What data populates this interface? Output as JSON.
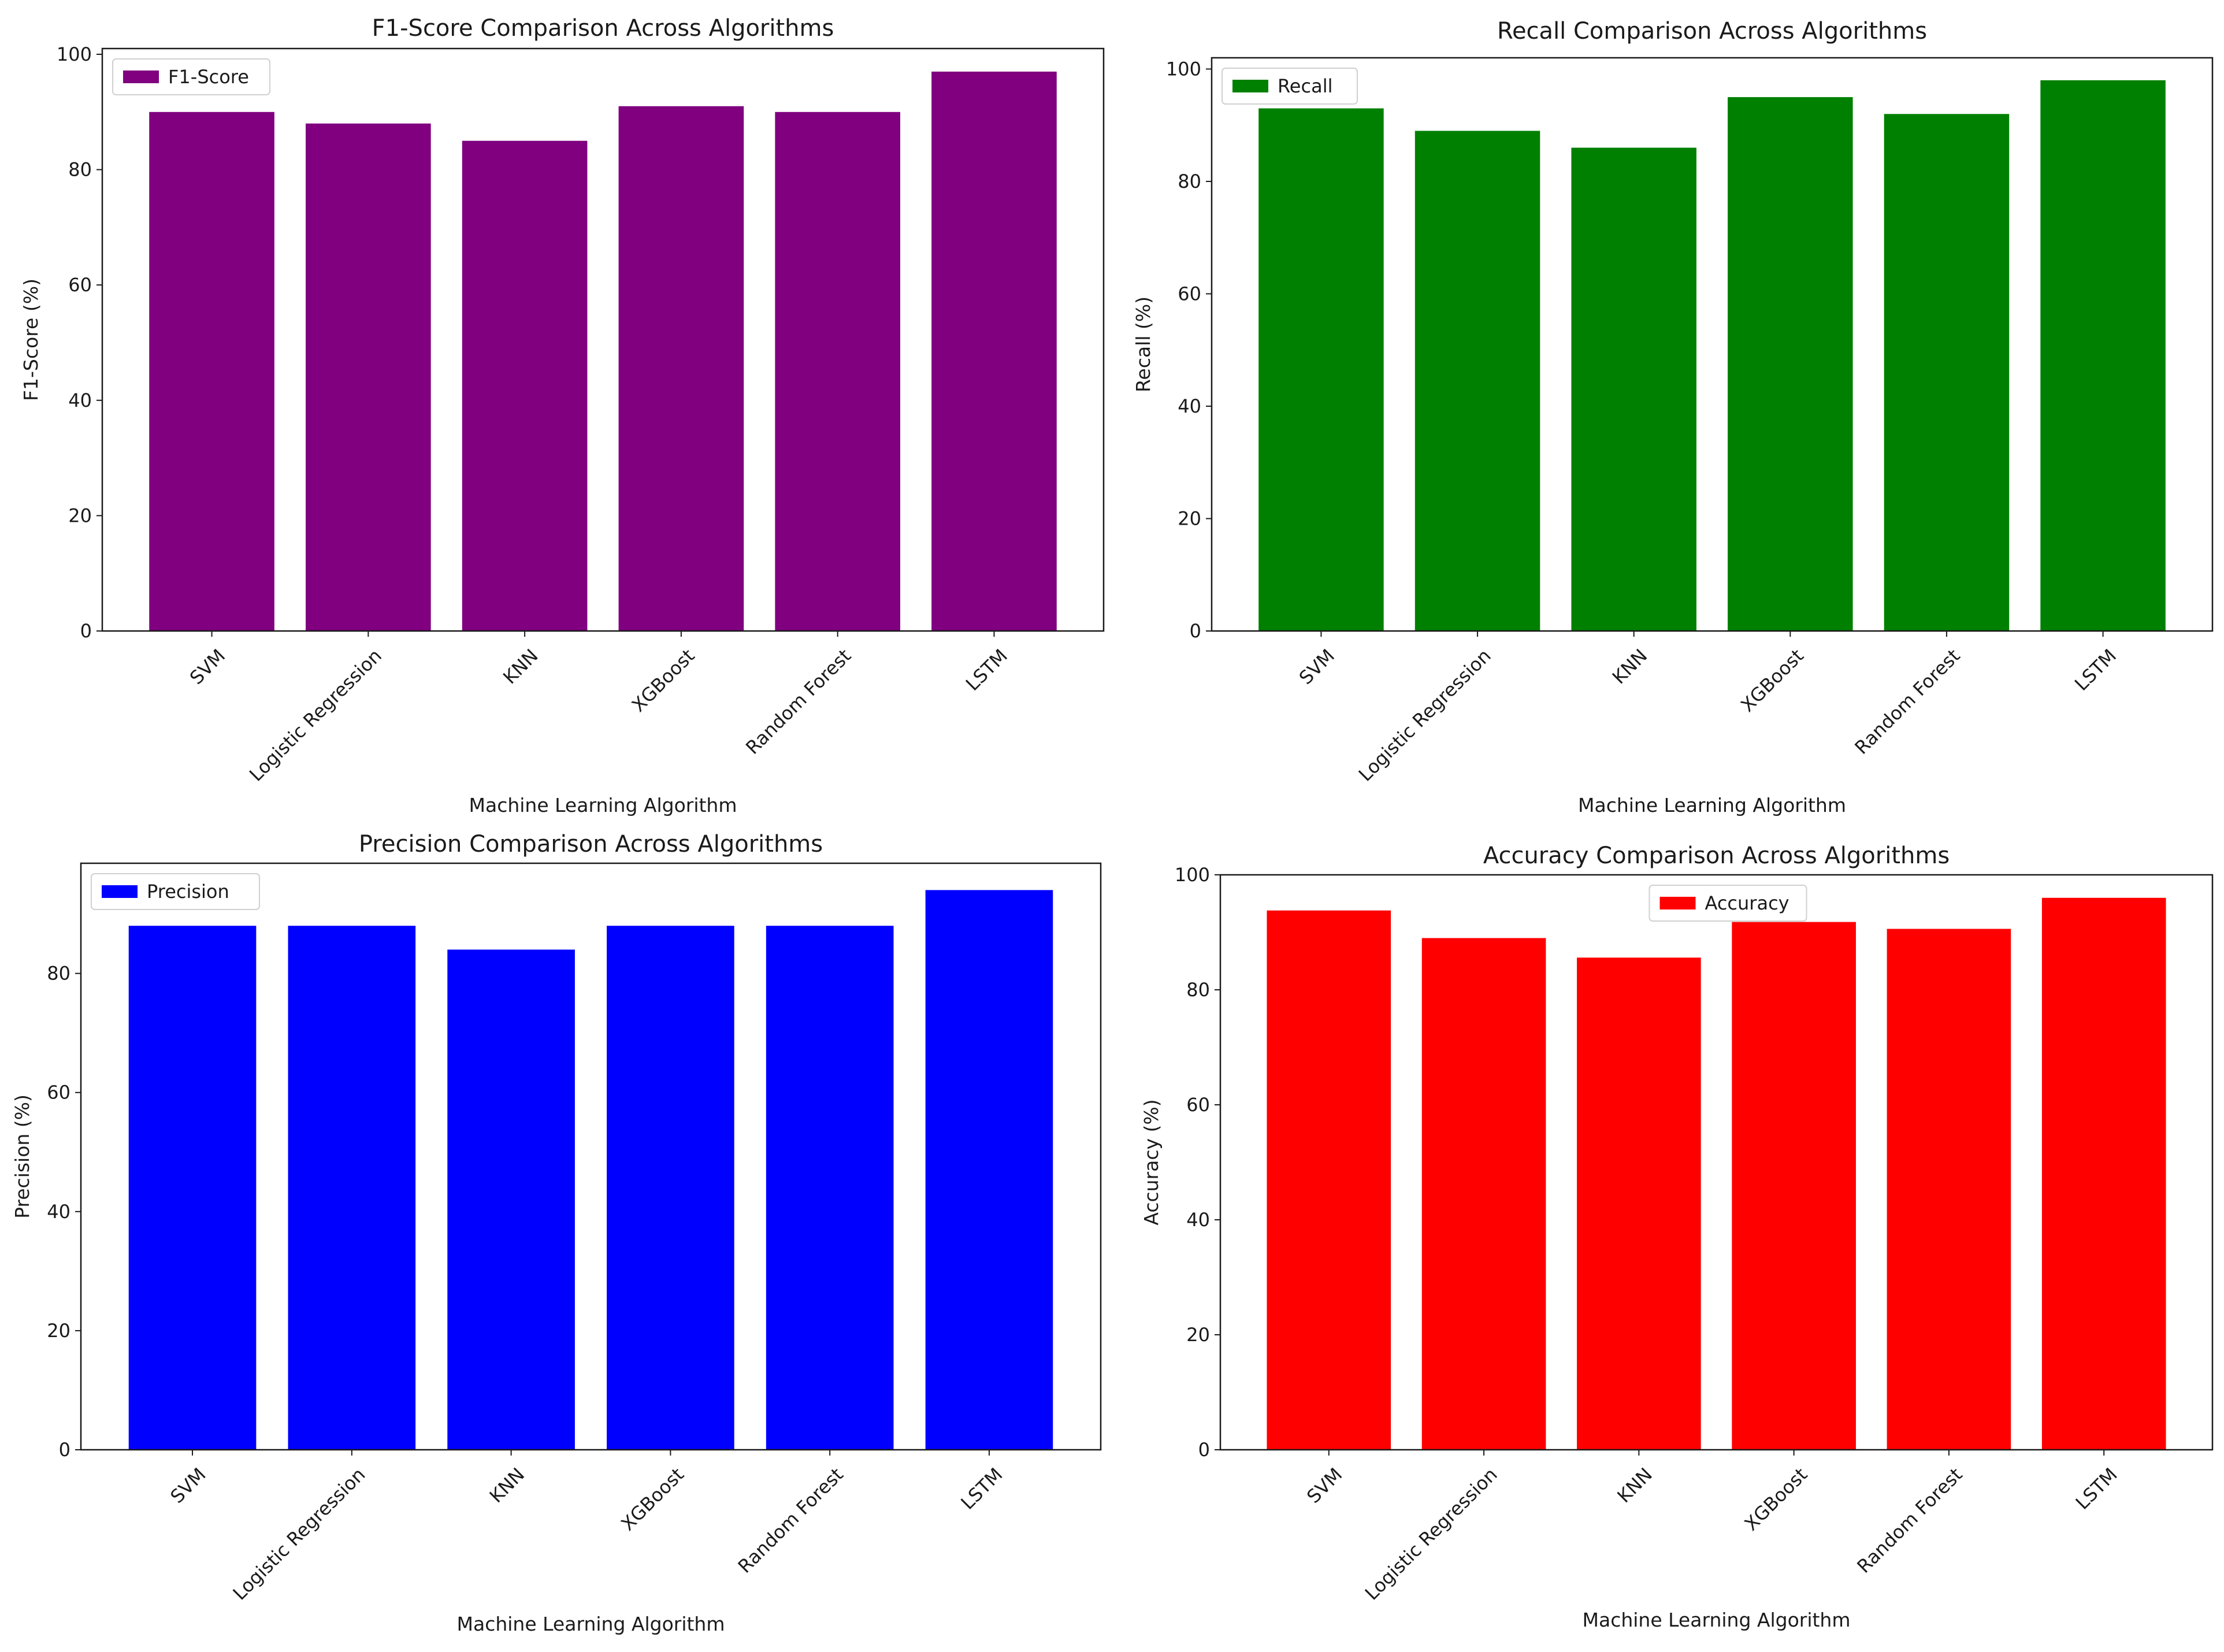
{
  "chart_data": [
    {
      "type": "bar",
      "title": "F1-Score Comparison Across Algorithms",
      "xlabel": "Machine Learning Algorithm",
      "ylabel": "F1-Score (%)",
      "categories": [
        "SVM",
        "Logistic Regression",
        "KNN",
        "XGBoost",
        "Random Forest",
        "LSTM"
      ],
      "series": [
        {
          "name": "F1-Score",
          "values": [
            90,
            88,
            85,
            91,
            90,
            97
          ]
        }
      ],
      "color": "#800080",
      "ylim": [
        0,
        101
      ],
      "yticks": [
        0,
        20,
        40,
        60,
        80,
        100
      ],
      "legend": "top-left",
      "grid": false
    },
    {
      "type": "bar",
      "title": "Recall Comparison Across Algorithms",
      "xlabel": "Machine Learning Algorithm",
      "ylabel": "Recall (%)",
      "categories": [
        "SVM",
        "Logistic Regression",
        "KNN",
        "XGBoost",
        "Random Forest",
        "LSTM"
      ],
      "series": [
        {
          "name": "Recall",
          "values": [
            93,
            89,
            86,
            95,
            92,
            98
          ]
        }
      ],
      "color": "#008000",
      "ylim": [
        0,
        102
      ],
      "yticks": [
        0,
        20,
        40,
        60,
        80,
        100
      ],
      "legend": "top-left",
      "grid": false
    },
    {
      "type": "bar",
      "title": "Precision Comparison Across Algorithms",
      "xlabel": "Machine Learning Algorithm",
      "ylabel": "Precision (%)",
      "categories": [
        "SVM",
        "Logistic Regression",
        "KNN",
        "XGBoost",
        "Random Forest",
        "LSTM"
      ],
      "series": [
        {
          "name": "Precision",
          "values": [
            88,
            88,
            84,
            88,
            88,
            94
          ]
        }
      ],
      "color": "#0000ff",
      "ylim": [
        0,
        98.5
      ],
      "yticks": [
        0,
        20,
        40,
        60,
        80
      ],
      "legend": "top-left",
      "grid": false
    },
    {
      "type": "bar",
      "title": "Accuracy Comparison Across Algorithms",
      "xlabel": "Machine Learning Algorithm",
      "ylabel": "Accuracy (%)",
      "categories": [
        "SVM",
        "Logistic Regression",
        "KNN",
        "XGBoost",
        "Random Forest",
        "LSTM"
      ],
      "series": [
        {
          "name": "Accuracy",
          "values": [
            93.8,
            89,
            85.6,
            91.8,
            90.6,
            96
          ]
        }
      ],
      "color": "#ff0000",
      "ylim": [
        0,
        100
      ],
      "yticks": [
        0,
        20,
        40,
        60,
        80,
        100
      ],
      "legend": "top-center",
      "grid": false
    }
  ]
}
